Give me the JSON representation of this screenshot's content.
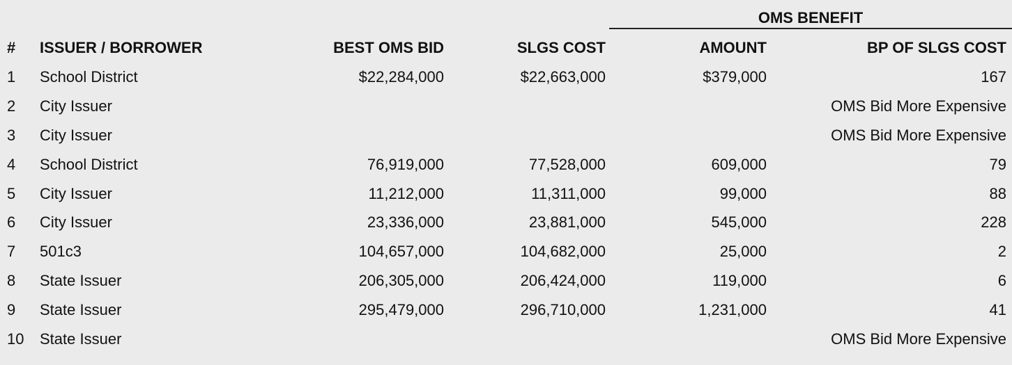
{
  "group_header": "OMS BENEFIT",
  "columns": [
    "#",
    "ISSUER / BORROWER",
    "BEST OMS BID",
    "SLGS COST",
    "AMOUNT",
    "BP OF SLGS COST"
  ],
  "rows": [
    {
      "num": "1",
      "issuer": "School District",
      "bid": "$22,284,000",
      "slgs": "$22,663,000",
      "amount": "$379,000",
      "bp": "167"
    },
    {
      "num": "2",
      "issuer": "City Issuer",
      "bid": "",
      "slgs": "",
      "amount": "",
      "bp": "OMS Bid More Expensive"
    },
    {
      "num": "3",
      "issuer": "City Issuer",
      "bid": "",
      "slgs": "",
      "amount": "",
      "bp": "OMS Bid More Expensive"
    },
    {
      "num": "4",
      "issuer": "School District",
      "bid": "76,919,000",
      "slgs": "77,528,000",
      "amount": "609,000",
      "bp": "79"
    },
    {
      "num": "5",
      "issuer": "City Issuer",
      "bid": "11,212,000",
      "slgs": "11,311,000",
      "amount": "99,000",
      "bp": "88"
    },
    {
      "num": "6",
      "issuer": "City Issuer",
      "bid": "23,336,000",
      "slgs": "23,881,000",
      "amount": "545,000",
      "bp": "228"
    },
    {
      "num": "7",
      "issuer": "501c3",
      "bid": "104,657,000",
      "slgs": "104,682,000",
      "amount": "25,000",
      "bp": "2"
    },
    {
      "num": "8",
      "issuer": "State Issuer",
      "bid": "206,305,000",
      "slgs": "206,424,000",
      "amount": "119,000",
      "bp": "6"
    },
    {
      "num": "9",
      "issuer": "State Issuer",
      "bid": "295,479,000",
      "slgs": "296,710,000",
      "amount": "1,231,000",
      "bp": "41"
    },
    {
      "num": "10",
      "issuer": "State Issuer",
      "bid": "",
      "slgs": "",
      "amount": "",
      "bp": "OMS Bid More Expensive"
    }
  ]
}
